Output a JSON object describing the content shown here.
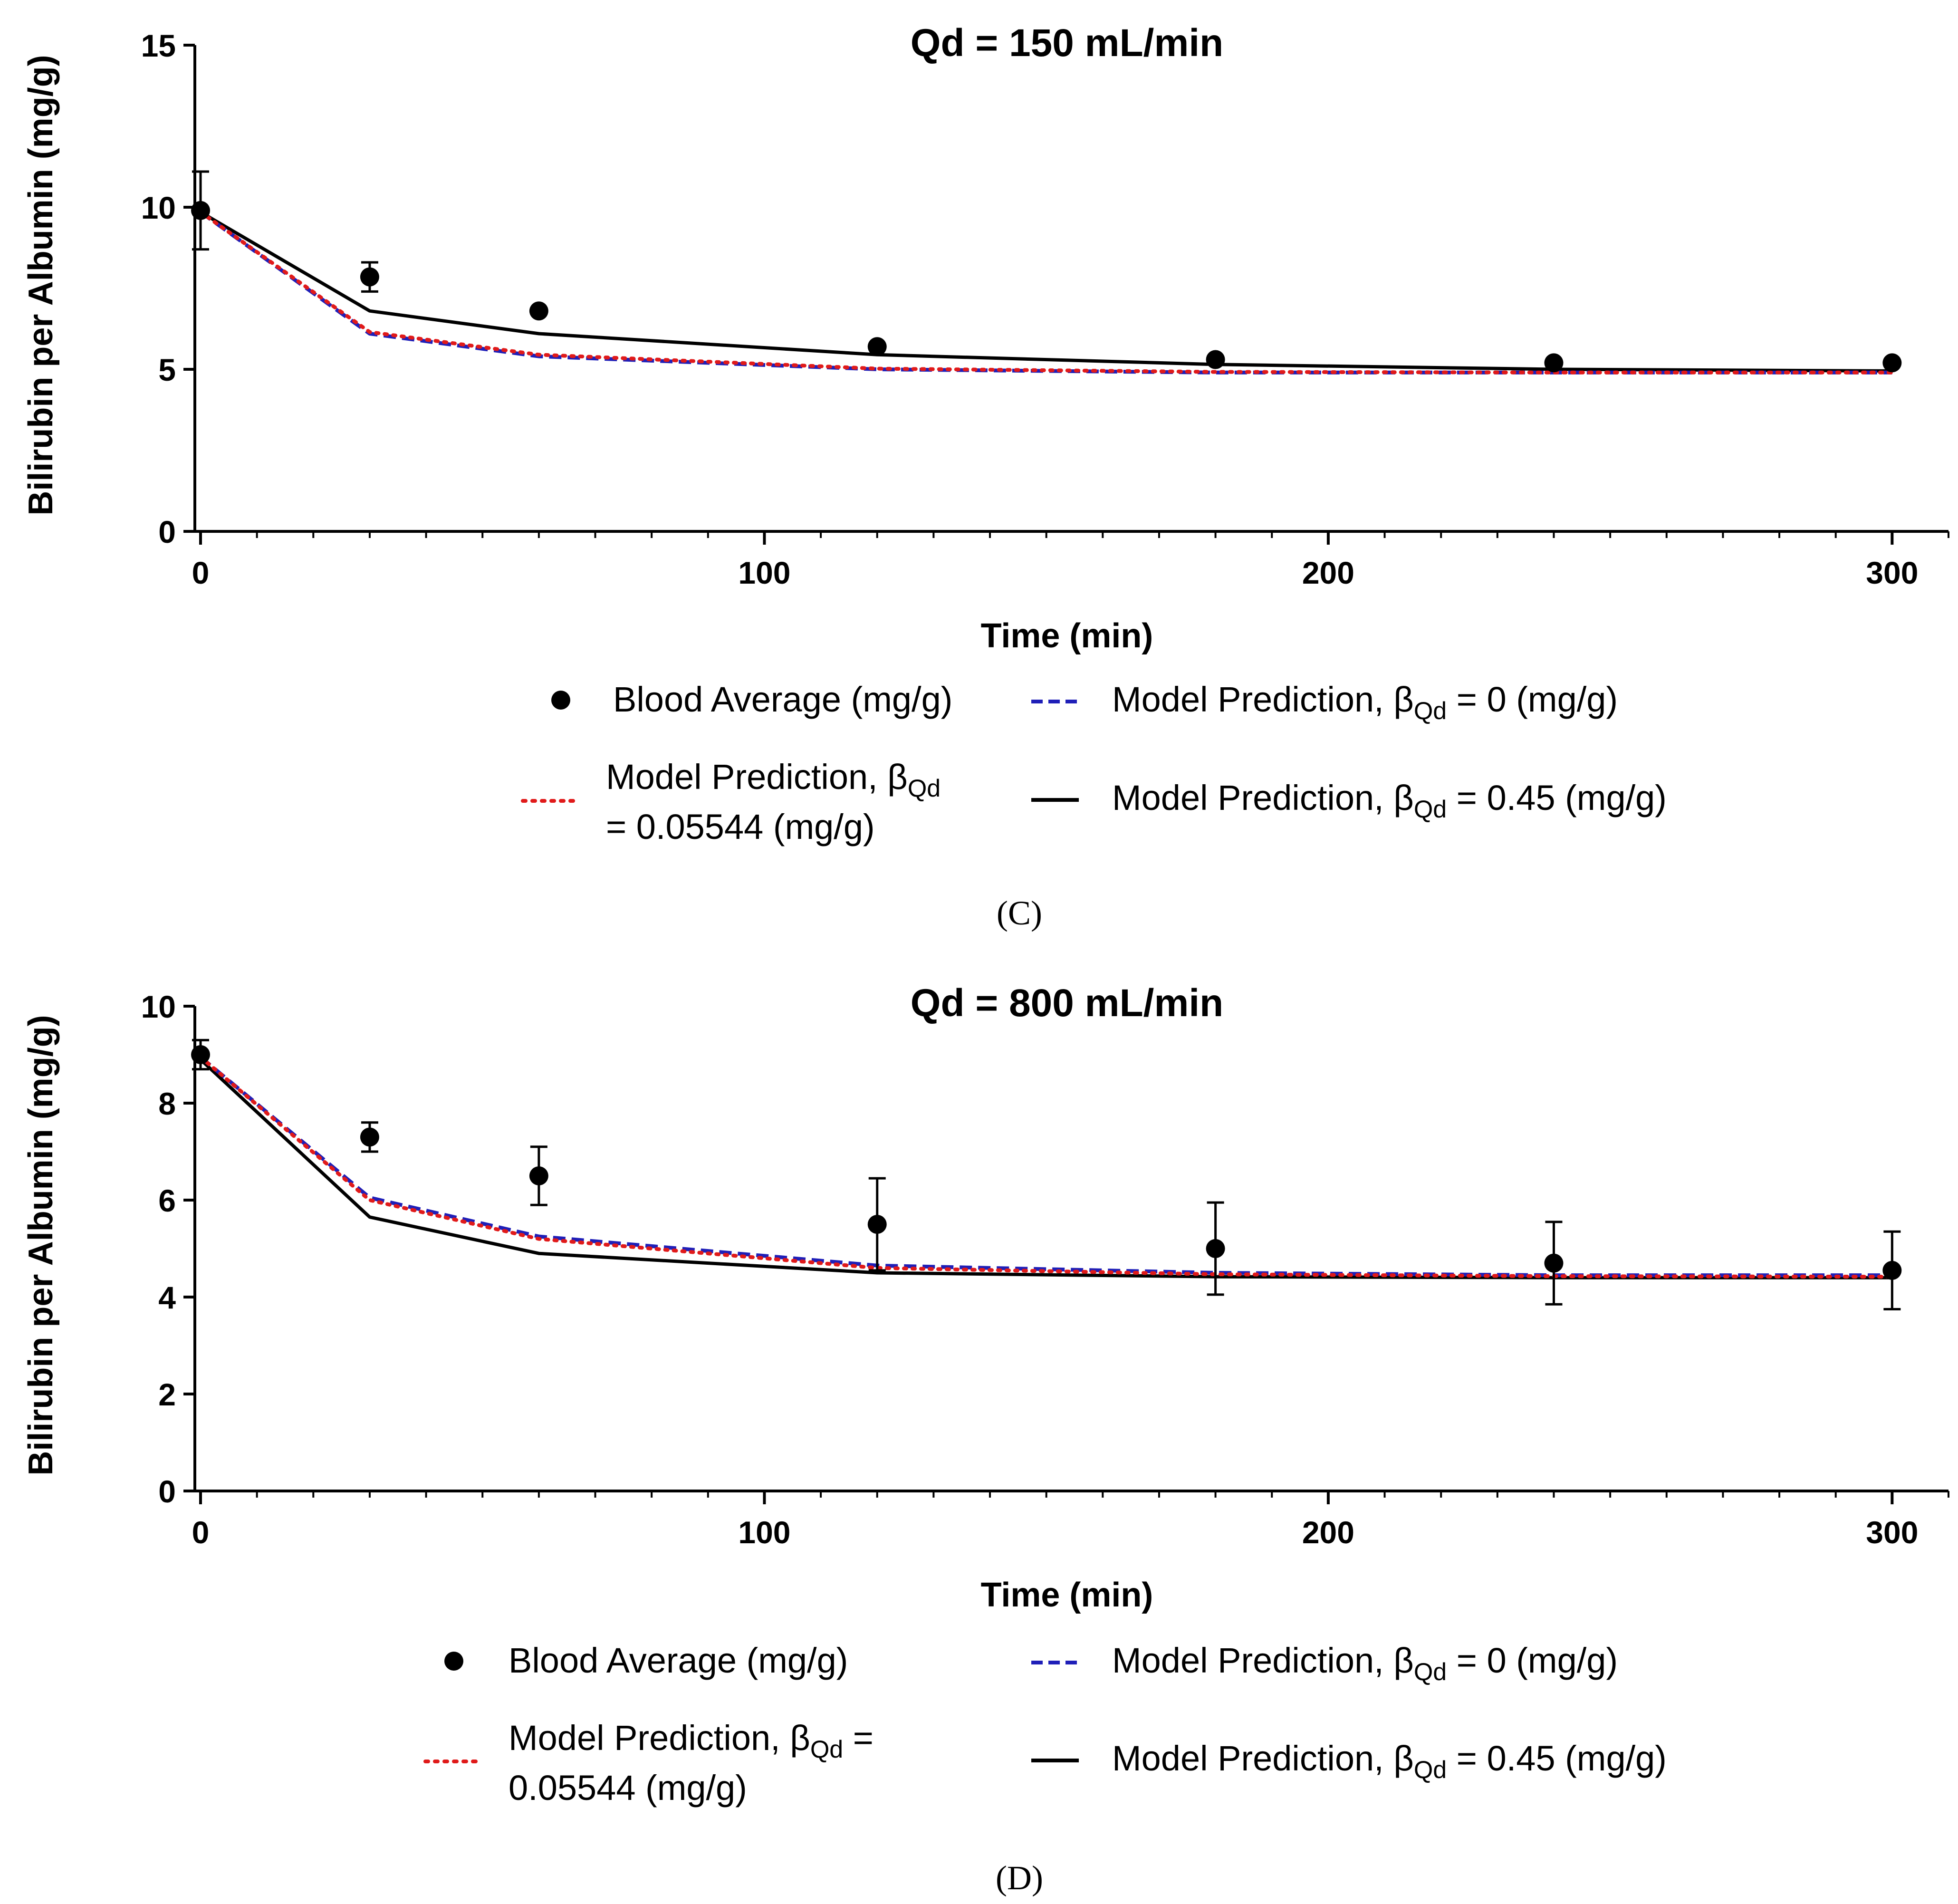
{
  "figure": {
    "panels": [
      {
        "panel_label": "C",
        "panel_caption": "(C)",
        "title": "Qd = 150 mL/min",
        "xlabel": "Time (min)",
        "ylabel": "Bilirubin per Albumin (mg/g)",
        "legend": {
          "blood": "Blood Average (mg/g)",
          "m0_prefix": "Model Prediction, β",
          "m0_sub": "Qd",
          "m0_suffix": " = 0 (mg/g)",
          "m1_line1_prefix": "Model Prediction, β",
          "m1_line1_sub": "Qd",
          "m1_line1_suffix": "",
          "m1_line2": "= 0.05544 (mg/g)",
          "m2_prefix": "Model Prediction, β",
          "m2_sub": "Qd",
          "m2_suffix": " = 0.45 (mg/g)"
        }
      },
      {
        "panel_label": "D",
        "panel_caption": "(D)",
        "title": "Qd = 800 mL/min",
        "xlabel": "Time (min)",
        "ylabel": "Bilirubin per Albumin (mg/g)",
        "legend": {
          "blood": "Blood Average (mg/g)",
          "m0_prefix": "Model Prediction, β",
          "m0_sub": "Qd",
          "m0_suffix": " = 0 (mg/g)",
          "m1_line1_prefix": "Model Prediction, β",
          "m1_line1_sub": "Qd",
          "m1_line1_suffix": " =",
          "m1_line2": "0.05544 (mg/g)",
          "m2_prefix": "Model Prediction, β",
          "m2_sub": "Qd",
          "m2_suffix": " = 0.45 (mg/g)"
        }
      }
    ]
  },
  "chart_data": [
    {
      "type": "line",
      "title": "Qd = 150 mL/min",
      "xlabel": "Time (min)",
      "ylabel": "Bilirubin per Albumin (mg/g)",
      "xlim": [
        0,
        310
      ],
      "ylim": [
        0,
        15
      ],
      "xticks": [
        0,
        100,
        200,
        300
      ],
      "xtick_labels": [
        "0",
        "100",
        "200",
        "300"
      ],
      "xminor_step": 10,
      "yticks": [
        0,
        5,
        10,
        15
      ],
      "ytick_labels": [
        "0",
        "5",
        "10",
        "15"
      ],
      "points": {
        "name": "Blood Average (mg/g)",
        "x": [
          0,
          30,
          60,
          120,
          180,
          240,
          300
        ],
        "y": [
          9.9,
          7.85,
          6.8,
          5.7,
          5.3,
          5.2,
          5.2
        ],
        "err": [
          1.2,
          0.45,
          0,
          0,
          0,
          0,
          0
        ]
      },
      "series": [
        {
          "name": "Model Prediction, βQd = 0 (mg/g)",
          "style": "dashed",
          "color": "#1f1fb8",
          "x": [
            0,
            30,
            60,
            120,
            180,
            240,
            300
          ],
          "y": [
            9.85,
            6.1,
            5.4,
            5.0,
            4.9,
            4.9,
            4.9
          ]
        },
        {
          "name": "Model Prediction, βQd = 0.05544 (mg/g)",
          "style": "dotted",
          "color": "#e01a1a",
          "x": [
            0,
            30,
            60,
            120,
            180,
            240,
            300
          ],
          "y": [
            9.85,
            6.15,
            5.45,
            5.02,
            4.92,
            4.9,
            4.9
          ]
        },
        {
          "name": "Model Prediction, βQd = 0.45 (mg/g)",
          "style": "solid",
          "color": "#000000",
          "x": [
            0,
            30,
            60,
            120,
            180,
            240,
            300
          ],
          "y": [
            9.85,
            6.8,
            6.1,
            5.45,
            5.15,
            5.0,
            4.95
          ]
        }
      ]
    },
    {
      "type": "line",
      "title": "Qd = 800 mL/min",
      "xlabel": "Time (min)",
      "ylabel": "Bilirubin per Albumin (mg/g)",
      "xlim": [
        0,
        310
      ],
      "ylim": [
        0,
        10
      ],
      "xticks": [
        0,
        100,
        200,
        300
      ],
      "xtick_labels": [
        "0",
        "100",
        "200",
        "300"
      ],
      "xminor_step": 10,
      "yticks": [
        0,
        2,
        4,
        6,
        8,
        10
      ],
      "ytick_labels": [
        "0",
        "2",
        "4",
        "6",
        "8",
        "10"
      ],
      "points": {
        "name": "Blood Average (mg/g)",
        "x": [
          0,
          30,
          60,
          120,
          180,
          240,
          300
        ],
        "y": [
          9.0,
          7.3,
          6.5,
          5.5,
          5.0,
          4.7,
          4.55
        ],
        "err": [
          0.3,
          0.3,
          0.6,
          0.95,
          0.95,
          0.85,
          0.8
        ]
      },
      "series": [
        {
          "name": "Model Prediction, βQd = 0 (mg/g)",
          "style": "dashed",
          "color": "#1f1fb8",
          "x": [
            0,
            30,
            60,
            120,
            180,
            240,
            300
          ],
          "y": [
            8.95,
            6.05,
            5.25,
            4.65,
            4.5,
            4.45,
            4.45
          ]
        },
        {
          "name": "Model Prediction, βQd = 0.05544 (mg/g)",
          "style": "dotted",
          "color": "#e01a1a",
          "x": [
            0,
            30,
            60,
            120,
            180,
            240,
            300
          ],
          "y": [
            8.95,
            6.0,
            5.2,
            4.6,
            4.47,
            4.43,
            4.42
          ]
        },
        {
          "name": "Model Prediction, βQd = 0.45 (mg/g)",
          "style": "solid",
          "color": "#000000",
          "x": [
            0,
            30,
            60,
            120,
            180,
            240,
            300
          ],
          "y": [
            8.9,
            5.65,
            4.9,
            4.5,
            4.42,
            4.4,
            4.4
          ]
        }
      ]
    }
  ]
}
